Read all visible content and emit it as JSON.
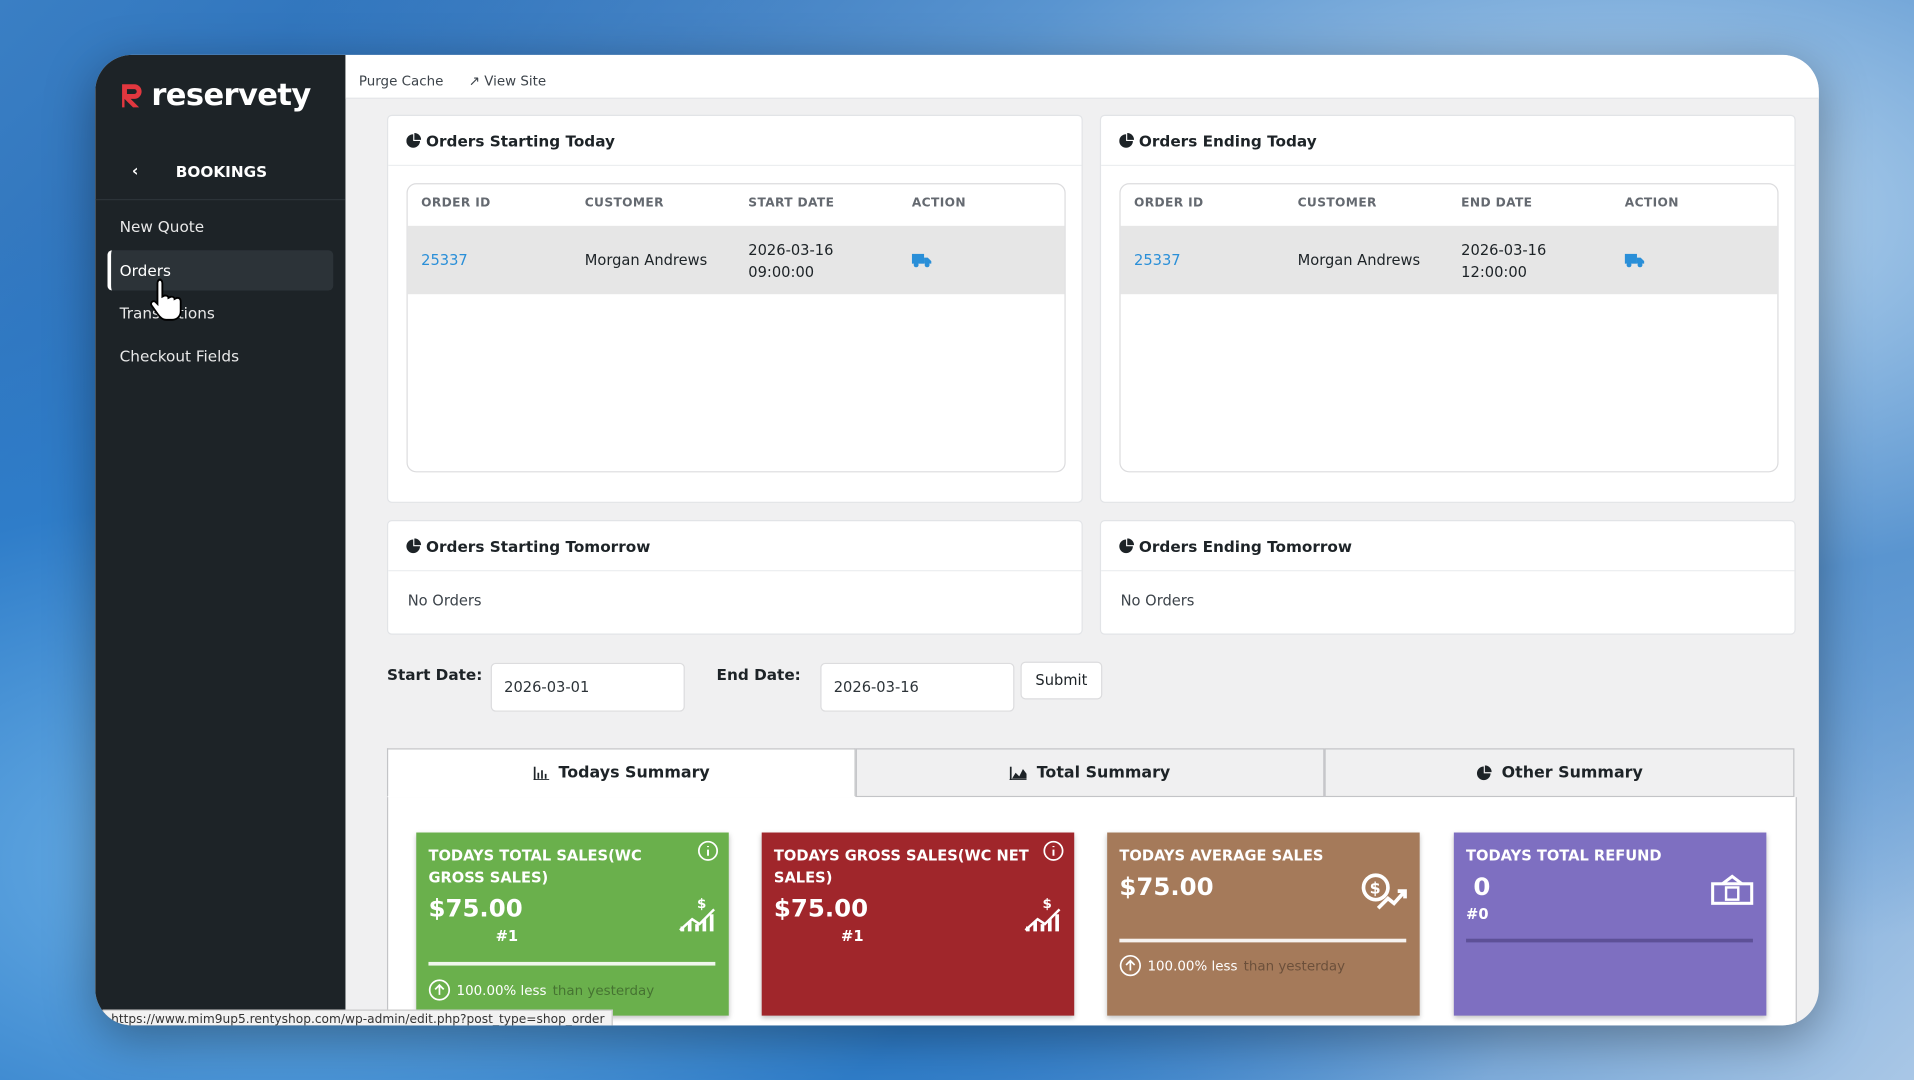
{
  "brand": "reservety",
  "topbar": {
    "purge_cache": "Purge Cache",
    "view_site": "View Site"
  },
  "sidebar": {
    "section": "BOOKINGS",
    "items": [
      "New Quote",
      "Orders",
      "Transactions",
      "Checkout Fields"
    ]
  },
  "panels": [
    {
      "title": "Orders Starting Today",
      "columns": [
        "ORDER ID",
        "CUSTOMER",
        "START DATE",
        "ACTION"
      ],
      "rows": [
        [
          "25337",
          "Morgan Andrews",
          "2026-03-16 09:00:00"
        ]
      ]
    },
    {
      "title": "Orders Ending Today",
      "columns": [
        "ORDER ID",
        "CUSTOMER",
        "END DATE",
        "ACTION"
      ],
      "rows": [
        [
          "25337",
          "Morgan Andrews",
          "2026-03-16 12:00:00"
        ]
      ]
    },
    {
      "title": "Orders Starting Tomorrow",
      "empty": "No Orders"
    },
    {
      "title": "Orders Ending Tomorrow",
      "empty": "No Orders"
    }
  ],
  "date_filter": {
    "start_label": "Start Date:",
    "start_value": "2026-03-01",
    "end_label": "End Date:",
    "end_value": "2026-03-16",
    "submit": "Submit"
  },
  "tabs": [
    "Todays Summary",
    "Total Summary",
    "Other Summary"
  ],
  "cards": [
    {
      "title": "TODAYS TOTAL SALES(WC GROSS SALES)",
      "amount": "$75.00",
      "count": "#1",
      "change": "100.00% less",
      "compare": "than yesterday"
    },
    {
      "title": "TODAYS GROSS SALES(WC NET SALES)",
      "amount": "$75.00",
      "count": "#1"
    },
    {
      "title": "TODAYS AVERAGE SALES",
      "amount": "$75.00",
      "change": "100.00% less",
      "compare": "than yesterday"
    },
    {
      "title": "TODAYS TOTAL REFUND",
      "amount": "0",
      "count": "#0"
    }
  ],
  "status_url": "https://www.mim9up5.rentyshop.com/wp-admin/edit.php?post_type=shop_order"
}
